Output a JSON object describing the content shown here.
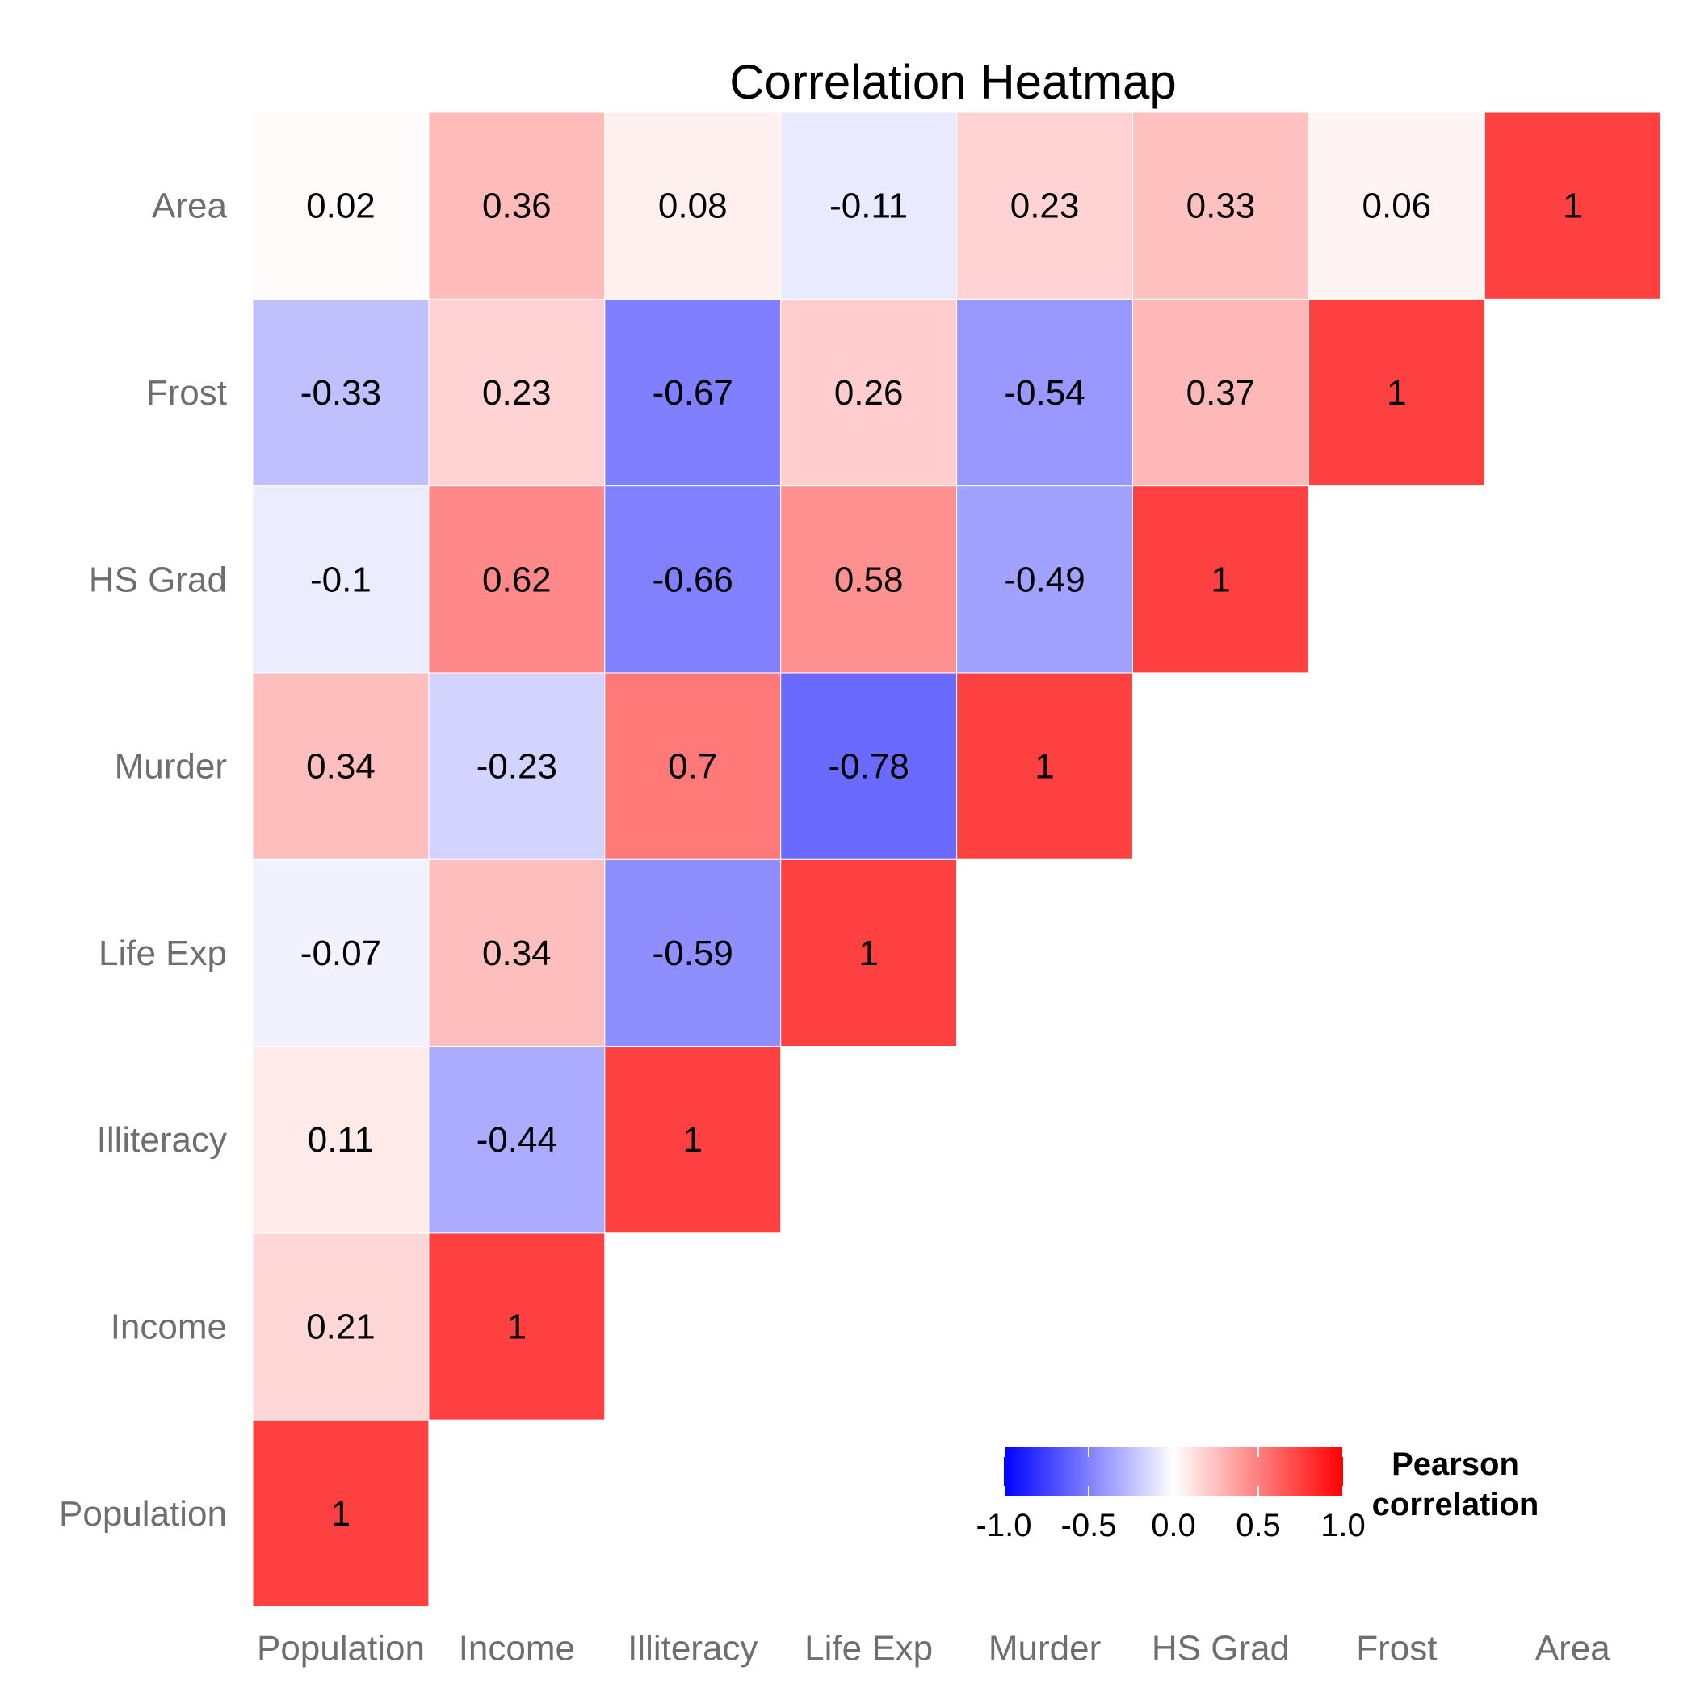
{
  "chart_data": {
    "type": "heatmap",
    "title": "Correlation Heatmap",
    "variables": [
      "Population",
      "Income",
      "Illiteracy",
      "Life Exp",
      "Murder",
      "HS Grad",
      "Frost",
      "Area"
    ],
    "x_order": [
      "Population",
      "Income",
      "Illiteracy",
      "Life Exp",
      "Murder",
      "HS Grad",
      "Frost",
      "Area"
    ],
    "y_order_top_to_bottom": [
      "Area",
      "Frost",
      "HS Grad",
      "Murder",
      "Life Exp",
      "Illiteracy",
      "Income",
      "Population"
    ],
    "matrix_layout": "upper triangle (lower-left triangle including diagonal shown)",
    "cells": [
      {
        "x": "Population",
        "y": "Population",
        "value": 1,
        "label": "1"
      },
      {
        "x": "Population",
        "y": "Income",
        "value": 0.21,
        "label": "0.21"
      },
      {
        "x": "Population",
        "y": "Illiteracy",
        "value": 0.11,
        "label": "0.11"
      },
      {
        "x": "Population",
        "y": "Life Exp",
        "value": -0.07,
        "label": "-0.07"
      },
      {
        "x": "Population",
        "y": "Murder",
        "value": 0.34,
        "label": "0.34"
      },
      {
        "x": "Population",
        "y": "HS Grad",
        "value": -0.1,
        "label": "-0.1"
      },
      {
        "x": "Population",
        "y": "Frost",
        "value": -0.33,
        "label": "-0.33"
      },
      {
        "x": "Population",
        "y": "Area",
        "value": 0.02,
        "label": "0.02"
      },
      {
        "x": "Income",
        "y": "Income",
        "value": 1,
        "label": "1"
      },
      {
        "x": "Income",
        "y": "Illiteracy",
        "value": -0.44,
        "label": "-0.44"
      },
      {
        "x": "Income",
        "y": "Life Exp",
        "value": 0.34,
        "label": "0.34"
      },
      {
        "x": "Income",
        "y": "Murder",
        "value": -0.23,
        "label": "-0.23"
      },
      {
        "x": "Income",
        "y": "HS Grad",
        "value": 0.62,
        "label": "0.62"
      },
      {
        "x": "Income",
        "y": "Frost",
        "value": 0.23,
        "label": "0.23"
      },
      {
        "x": "Income",
        "y": "Area",
        "value": 0.36,
        "label": "0.36"
      },
      {
        "x": "Illiteracy",
        "y": "Illiteracy",
        "value": 1,
        "label": "1"
      },
      {
        "x": "Illiteracy",
        "y": "Life Exp",
        "value": -0.59,
        "label": "-0.59"
      },
      {
        "x": "Illiteracy",
        "y": "Murder",
        "value": 0.7,
        "label": "0.7"
      },
      {
        "x": "Illiteracy",
        "y": "HS Grad",
        "value": -0.66,
        "label": "-0.66"
      },
      {
        "x": "Illiteracy",
        "y": "Frost",
        "value": -0.67,
        "label": "-0.67"
      },
      {
        "x": "Illiteracy",
        "y": "Area",
        "value": 0.08,
        "label": "0.08"
      },
      {
        "x": "Life Exp",
        "y": "Life Exp",
        "value": 1,
        "label": "1"
      },
      {
        "x": "Life Exp",
        "y": "Murder",
        "value": -0.78,
        "label": "-0.78"
      },
      {
        "x": "Life Exp",
        "y": "HS Grad",
        "value": 0.58,
        "label": "0.58"
      },
      {
        "x": "Life Exp",
        "y": "Frost",
        "value": 0.26,
        "label": "0.26"
      },
      {
        "x": "Life Exp",
        "y": "Area",
        "value": -0.11,
        "label": "-0.11"
      },
      {
        "x": "Murder",
        "y": "Murder",
        "value": 1,
        "label": "1"
      },
      {
        "x": "Murder",
        "y": "HS Grad",
        "value": -0.49,
        "label": "-0.49"
      },
      {
        "x": "Murder",
        "y": "Frost",
        "value": -0.54,
        "label": "-0.54"
      },
      {
        "x": "Murder",
        "y": "Area",
        "value": 0.23,
        "label": "0.23"
      },
      {
        "x": "HS Grad",
        "y": "HS Grad",
        "value": 1,
        "label": "1"
      },
      {
        "x": "HS Grad",
        "y": "Frost",
        "value": 0.37,
        "label": "0.37"
      },
      {
        "x": "HS Grad",
        "y": "Area",
        "value": 0.33,
        "label": "0.33"
      },
      {
        "x": "Frost",
        "y": "Frost",
        "value": 1,
        "label": "1"
      },
      {
        "x": "Frost",
        "y": "Area",
        "value": 0.06,
        "label": "0.06"
      },
      {
        "x": "Area",
        "y": "Area",
        "value": 1,
        "label": "1"
      }
    ],
    "legend": {
      "title_lines": [
        "Pearson",
        "correlation"
      ],
      "placement": "bottom-right inside plot",
      "range": [
        -1,
        1
      ],
      "ticks": [
        -1.0,
        -0.5,
        0.0,
        0.5,
        1.0
      ],
      "tick_labels": [
        "-1.0",
        "-0.5",
        "0.0",
        "0.5",
        "1.0"
      ]
    },
    "colors": {
      "low": "#0000ff",
      "mid": "#ffffff",
      "high": "#ff0000",
      "tile_alpha": 0.75,
      "axis_text": "#6e6e6e",
      "cell_text": "#000000"
    },
    "grid": false
  }
}
